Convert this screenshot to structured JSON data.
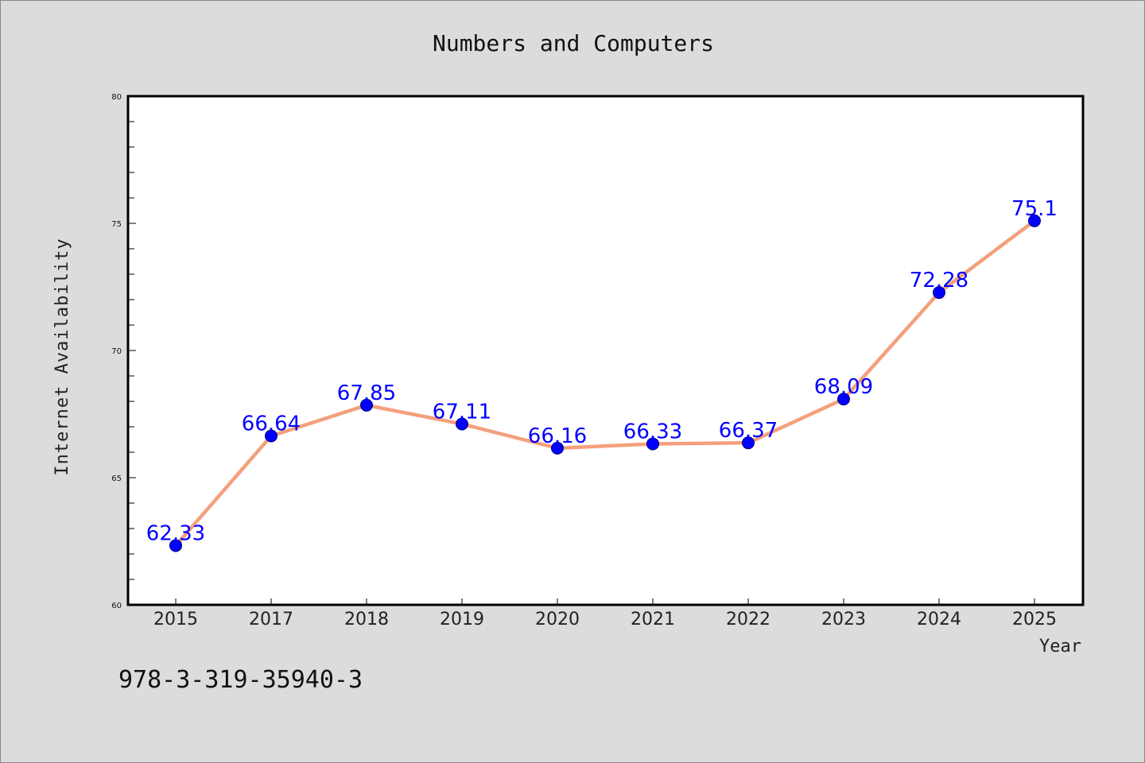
{
  "chart_data": {
    "type": "line",
    "title": "Numbers and Computers",
    "xlabel": "Year",
    "ylabel": "Internet Availability",
    "categories": [
      "2015",
      "2017",
      "2018",
      "2019",
      "2020",
      "2021",
      "2022",
      "2023",
      "2024",
      "2025"
    ],
    "values": [
      62.33,
      66.64,
      67.85,
      67.11,
      66.16,
      66.33,
      66.37,
      68.09,
      72.28,
      75.1
    ],
    "data_labels": [
      "62.33",
      "66.64",
      "67.85",
      "67.11",
      "66.16",
      "66.33",
      "66.37",
      "68.09",
      "72.28",
      "75.1"
    ],
    "ylim": [
      60,
      80
    ],
    "yticks": [
      "60",
      "65",
      "70",
      "75",
      "80"
    ],
    "grid": false,
    "legend": "none",
    "line_color": "#f4a07c",
    "marker_color": "#0000ff",
    "label_color": "#0000ff"
  },
  "footnote": "978-3-319-35940-3"
}
